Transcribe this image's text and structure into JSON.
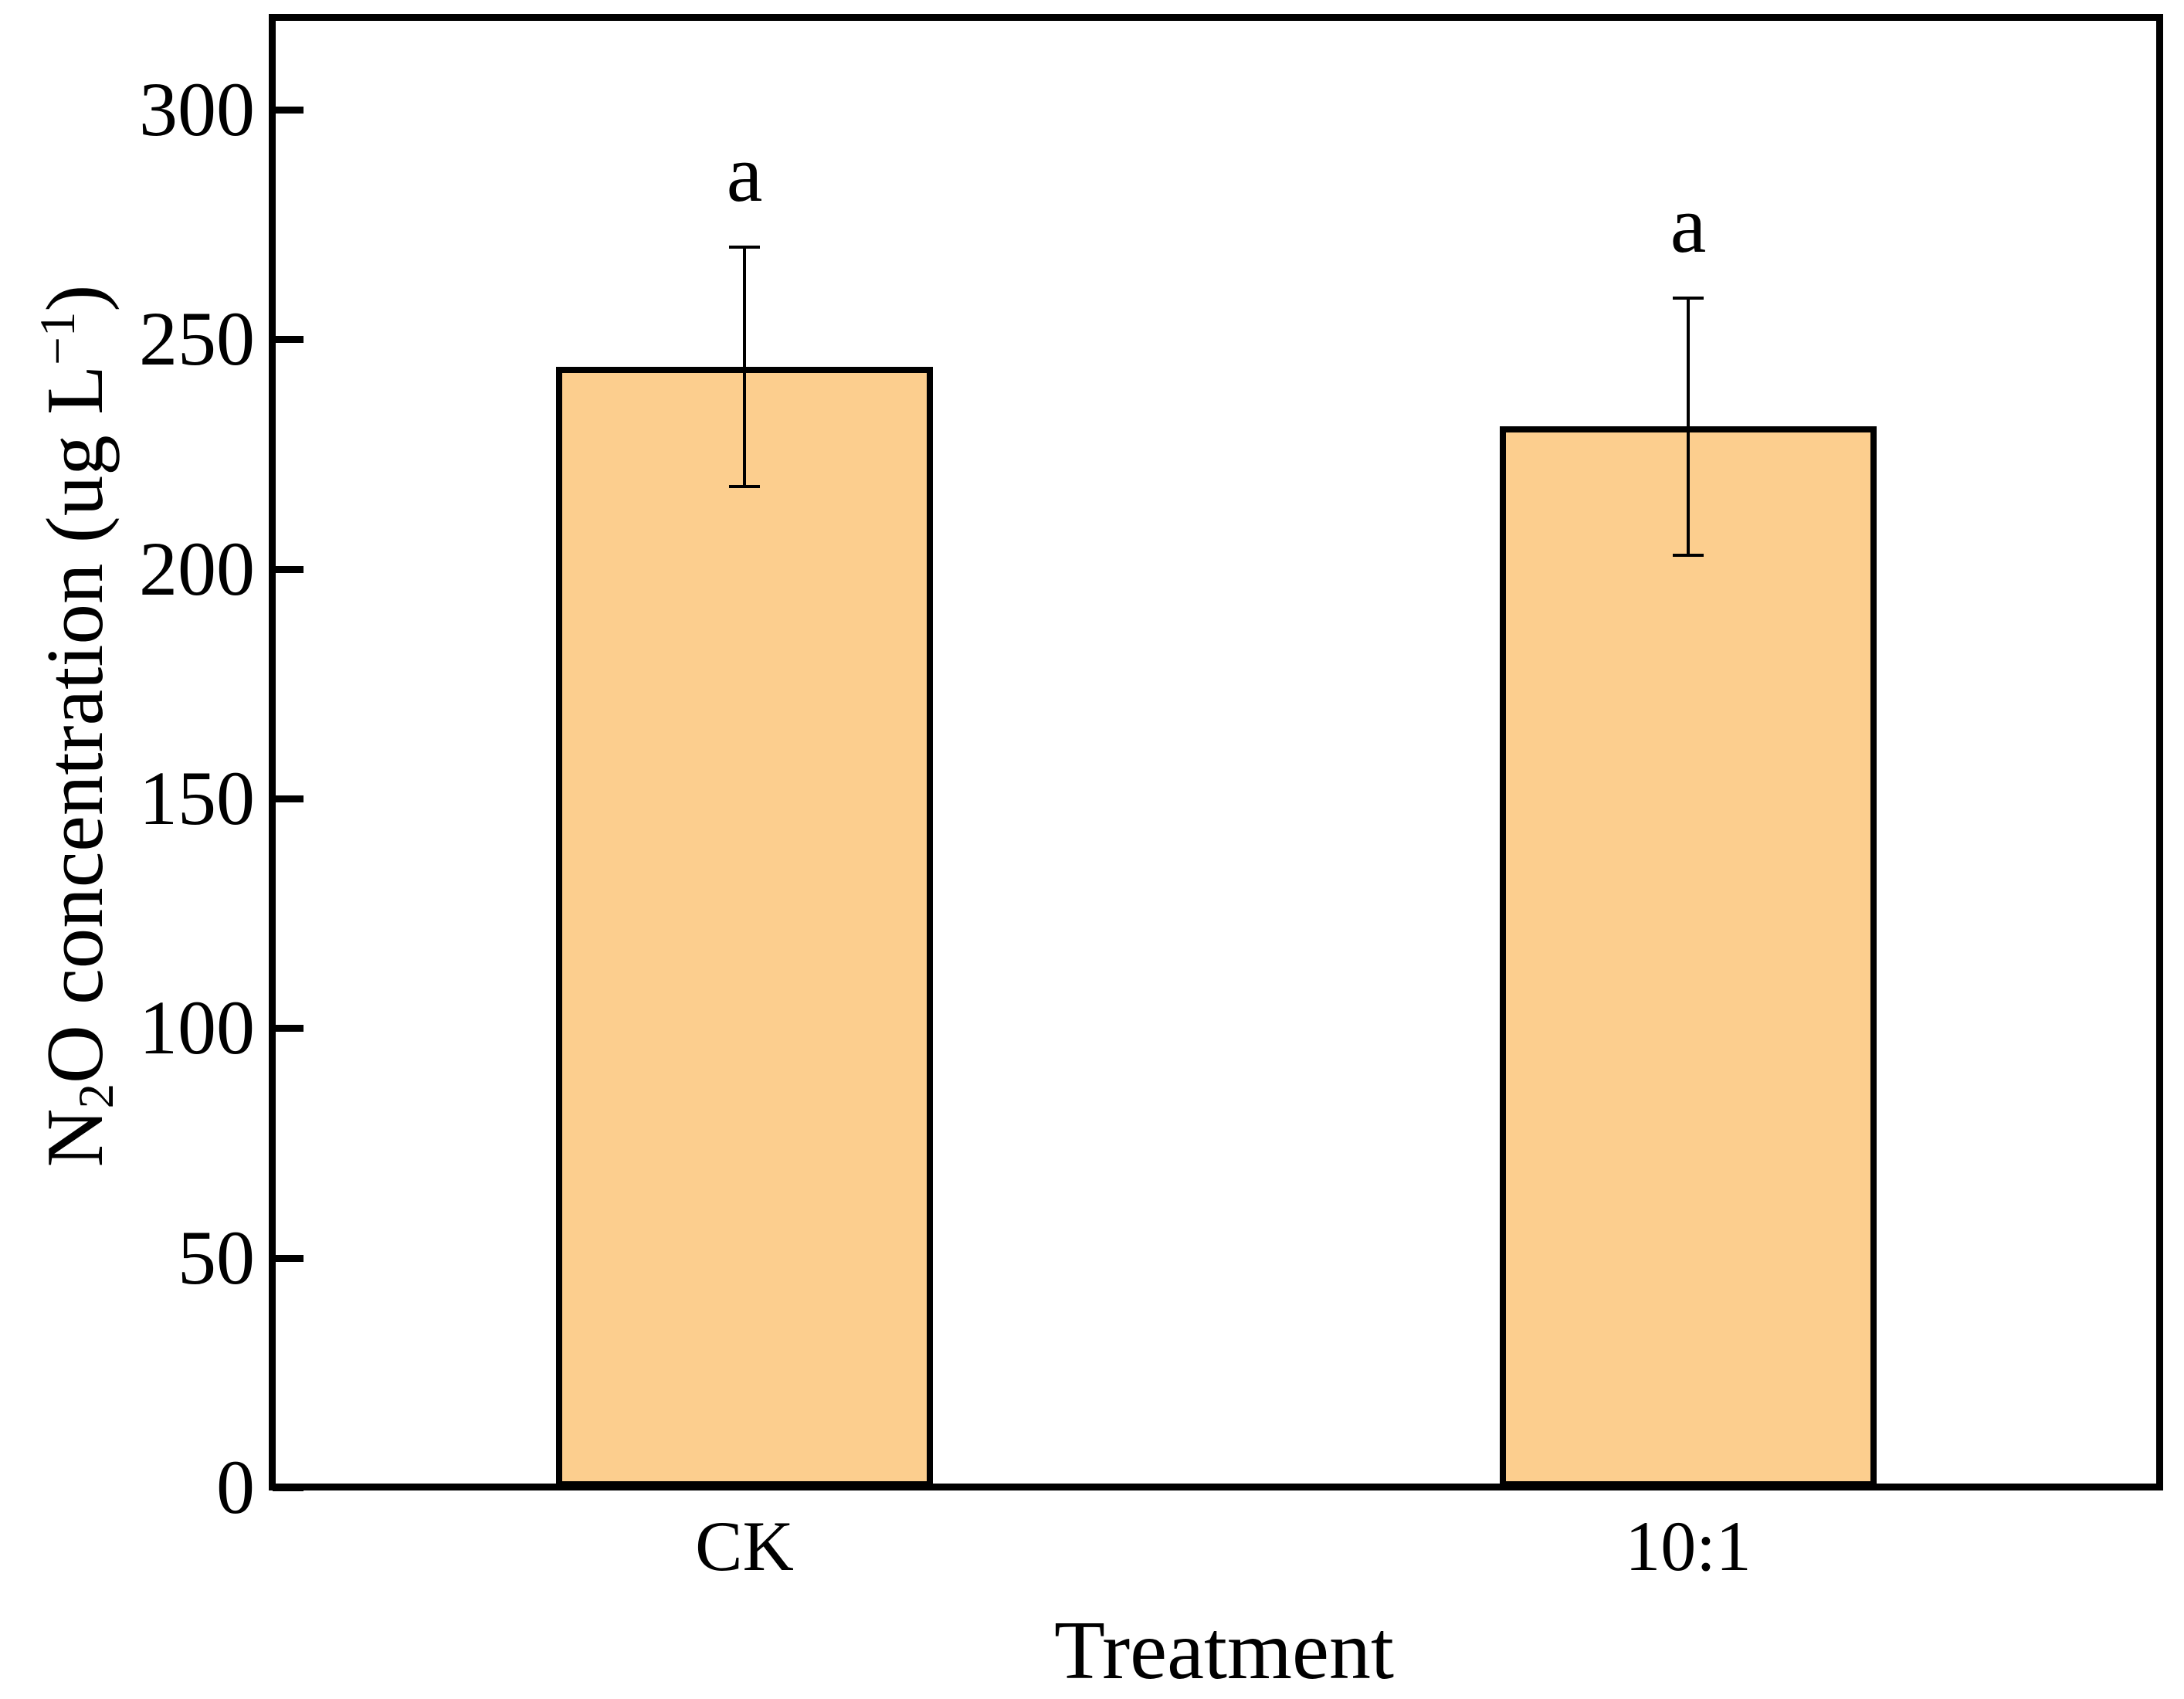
{
  "chart_data": {
    "type": "bar",
    "title": "",
    "categories": [
      "CK",
      "10:1"
    ],
    "values": [
      244,
      231
    ],
    "errors": [
      26,
      28
    ],
    "error_bar_ranges": [
      [
        218,
        270
      ],
      [
        203,
        259
      ]
    ],
    "sig_labels": [
      "a",
      "a"
    ],
    "xlabel": "Treatment",
    "ylabel": "N2O concentration (ug L-1)",
    "ylabel_parts": [
      {
        "t": "N"
      },
      {
        "t": "2",
        "style": "sub"
      },
      {
        "t": "O concentration (ug L"
      },
      {
        "t": "−1",
        "style": "sup"
      },
      {
        "t": ")"
      }
    ],
    "yticks": [
      0,
      50,
      100,
      150,
      200,
      250,
      300
    ],
    "ylim": [
      0,
      320
    ],
    "bar_color": "#FCCE8E",
    "bar_border_color": "#000000",
    "axis_color": "#000000",
    "layout": {
      "bar_centers_frac": [
        0.25,
        0.75
      ],
      "bar_width_frac": 0.2,
      "grid": false,
      "legend": "none",
      "tick_direction": "in",
      "frame": "full-box"
    }
  }
}
